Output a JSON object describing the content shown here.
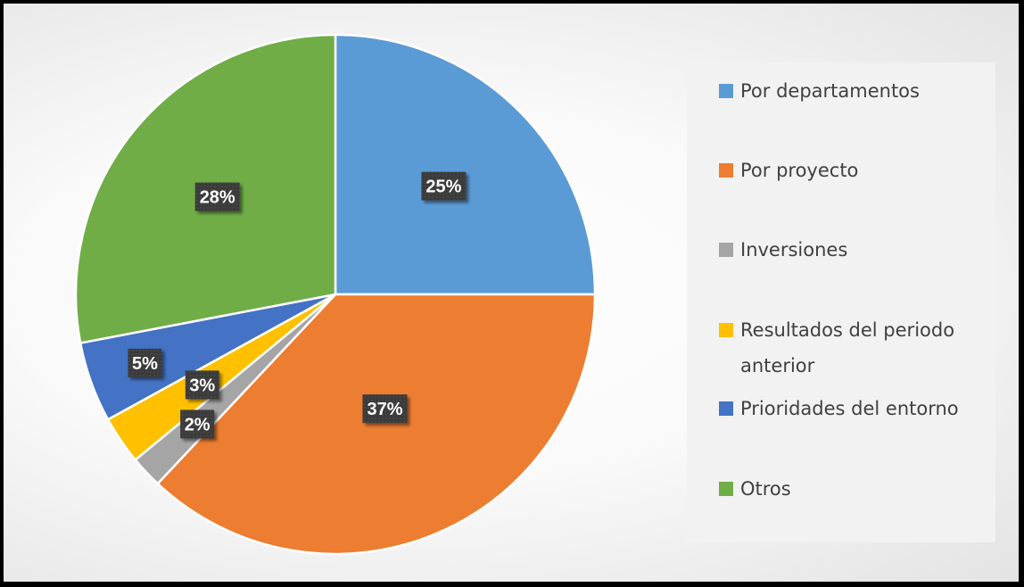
{
  "chart_data": {
    "type": "pie",
    "title": "",
    "categories": [
      "Por departamentos",
      "Por proyecto",
      "Inversiones",
      "Resultados del periodo anterior",
      "Prioridades del entorno",
      "Otros"
    ],
    "values": [
      25,
      37,
      2,
      3,
      5,
      28
    ],
    "data_labels": [
      "25%",
      "37%",
      "2%",
      "3%",
      "5%",
      "28%"
    ],
    "colors": [
      "#5b9bd5",
      "#ed7d31",
      "#a5a5a5",
      "#ffc000",
      "#4472c4",
      "#70ad47"
    ],
    "start_angle_deg": 0,
    "direction": "clockwise",
    "legend_position": "right",
    "data_label_style": {
      "background": "#404040",
      "text_color": "#ffffff"
    }
  }
}
